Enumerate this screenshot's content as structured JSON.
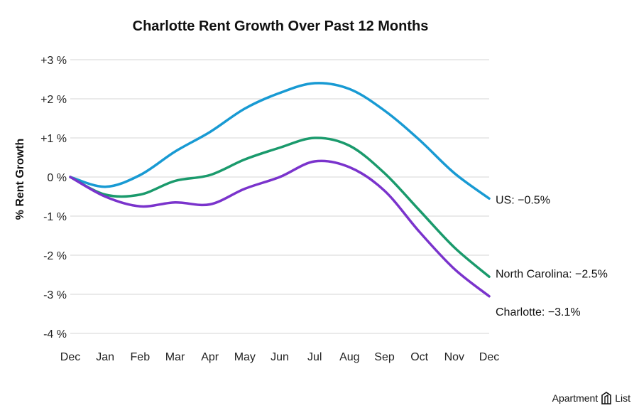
{
  "chart_data": {
    "type": "line",
    "title": "Charlotte Rent Growth Over Past 12 Months",
    "ylabel": "% Rent Growth",
    "xlabel": "",
    "x": [
      "Dec",
      "Jan",
      "Feb",
      "Mar",
      "Apr",
      "May",
      "Jun",
      "Jul",
      "Aug",
      "Sep",
      "Oct",
      "Nov",
      "Dec"
    ],
    "ylim": [
      -4,
      3
    ],
    "yticks": [
      3,
      2,
      1,
      0,
      -1,
      -2,
      -3,
      -4
    ],
    "ytick_labels": [
      "+3 %",
      "+2 %",
      "+1 %",
      "0 %",
      "-1 %",
      "-2 %",
      "-3 %",
      "-4 %"
    ],
    "grid": true,
    "series": [
      {
        "name": "US",
        "color": "#189ad3",
        "end_label": "US: −0.5%",
        "values": [
          0.0,
          -0.25,
          0.05,
          0.65,
          1.15,
          1.75,
          2.15,
          2.4,
          2.25,
          1.7,
          0.95,
          0.1,
          -0.55
        ]
      },
      {
        "name": "North Carolina",
        "color": "#1a9a6c",
        "end_label": "North Carolina: −2.5%",
        "values": [
          0.0,
          -0.45,
          -0.45,
          -0.1,
          0.05,
          0.45,
          0.75,
          1.0,
          0.8,
          0.1,
          -0.85,
          -1.8,
          -2.55
        ]
      },
      {
        "name": "Charlotte",
        "color": "#7a33cc",
        "end_label": "Charlotte: −3.1%",
        "values": [
          0.0,
          -0.5,
          -0.75,
          -0.65,
          -0.7,
          -0.3,
          0.0,
          0.4,
          0.25,
          -0.35,
          -1.4,
          -2.35,
          -3.05
        ]
      }
    ]
  },
  "branding": {
    "name_a": "Apartment",
    "name_b": "List"
  }
}
